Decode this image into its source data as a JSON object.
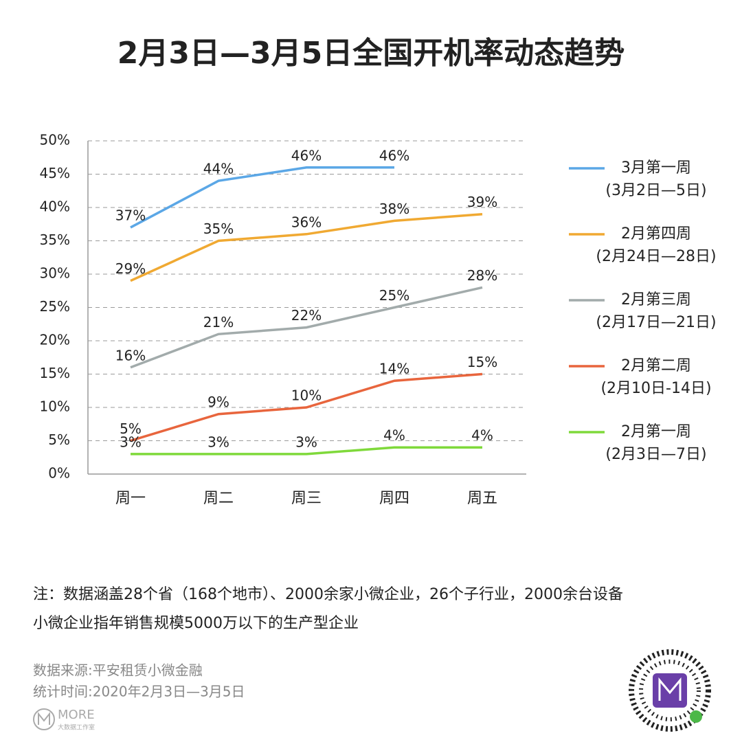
{
  "chart_data": {
    "type": "line",
    "title": "2月3日—3月5日全国开机率动态趋势",
    "categories": [
      "周一",
      "周二",
      "周三",
      "周四",
      "周五"
    ],
    "series": [
      {
        "name": "3月第一周",
        "period": "(3月2日—5日)",
        "color": "#5ba7e6",
        "values": [
          37,
          44,
          46,
          46,
          null
        ],
        "value_labels": [
          "37%",
          "44%",
          "46%",
          "46%",
          null
        ]
      },
      {
        "name": "2月第四周",
        "period": "(2月24日—28日)",
        "color": "#f0a932",
        "values": [
          29,
          35,
          36,
          38,
          39
        ],
        "value_labels": [
          "29%",
          "35%",
          "36%",
          "38%",
          "39%"
        ]
      },
      {
        "name": "2月第三周",
        "period": "(2月17日—21日)",
        "color": "#a2abab",
        "values": [
          16,
          21,
          22,
          25,
          28
        ],
        "value_labels": [
          "16%",
          "21%",
          "22%",
          "25%",
          "28%"
        ]
      },
      {
        "name": "2月第二周",
        "period": "(2月10日-14日)",
        "color": "#e8653d",
        "values": [
          5,
          9,
          10,
          14,
          15
        ],
        "value_labels": [
          "5%",
          "9%",
          "10%",
          "14%",
          "15%"
        ]
      },
      {
        "name": "2月第一周",
        "period": "(2月3日—7日)",
        "color": "#7fd93b",
        "values": [
          3,
          3,
          3,
          4,
          4
        ],
        "value_labels": [
          "3%",
          "3%",
          "3%",
          "4%",
          "4%"
        ]
      }
    ],
    "ylim": [
      0,
      50
    ],
    "yticks": [
      {
        "value": 0,
        "label": "0%"
      },
      {
        "value": 5,
        "label": "5%"
      },
      {
        "value": 10,
        "label": "10%"
      },
      {
        "value": 15,
        "label": "15%"
      },
      {
        "value": 20,
        "label": "20%"
      },
      {
        "value": 25,
        "label": "25%"
      },
      {
        "value": 30,
        "label": "30%"
      },
      {
        "value": 35,
        "label": "35%"
      },
      {
        "value": 40,
        "label": "40%"
      },
      {
        "value": 45,
        "label": "45%"
      },
      {
        "value": 50,
        "label": "50%"
      }
    ],
    "grid": true,
    "legend": "right"
  },
  "notes": [
    "注：数据涵盖28个省（168个地市）、2000余家小微企业，26个子行业，2000余台设备",
    "小微企业指年销售规模5000万以下的生产型企业"
  ],
  "source": [
    "数据来源:平安租赁小微金融",
    "统计时间:2020年2月3日—3月5日"
  ],
  "brand": {
    "name": "MORE",
    "subtitle": "大数据工作室"
  }
}
